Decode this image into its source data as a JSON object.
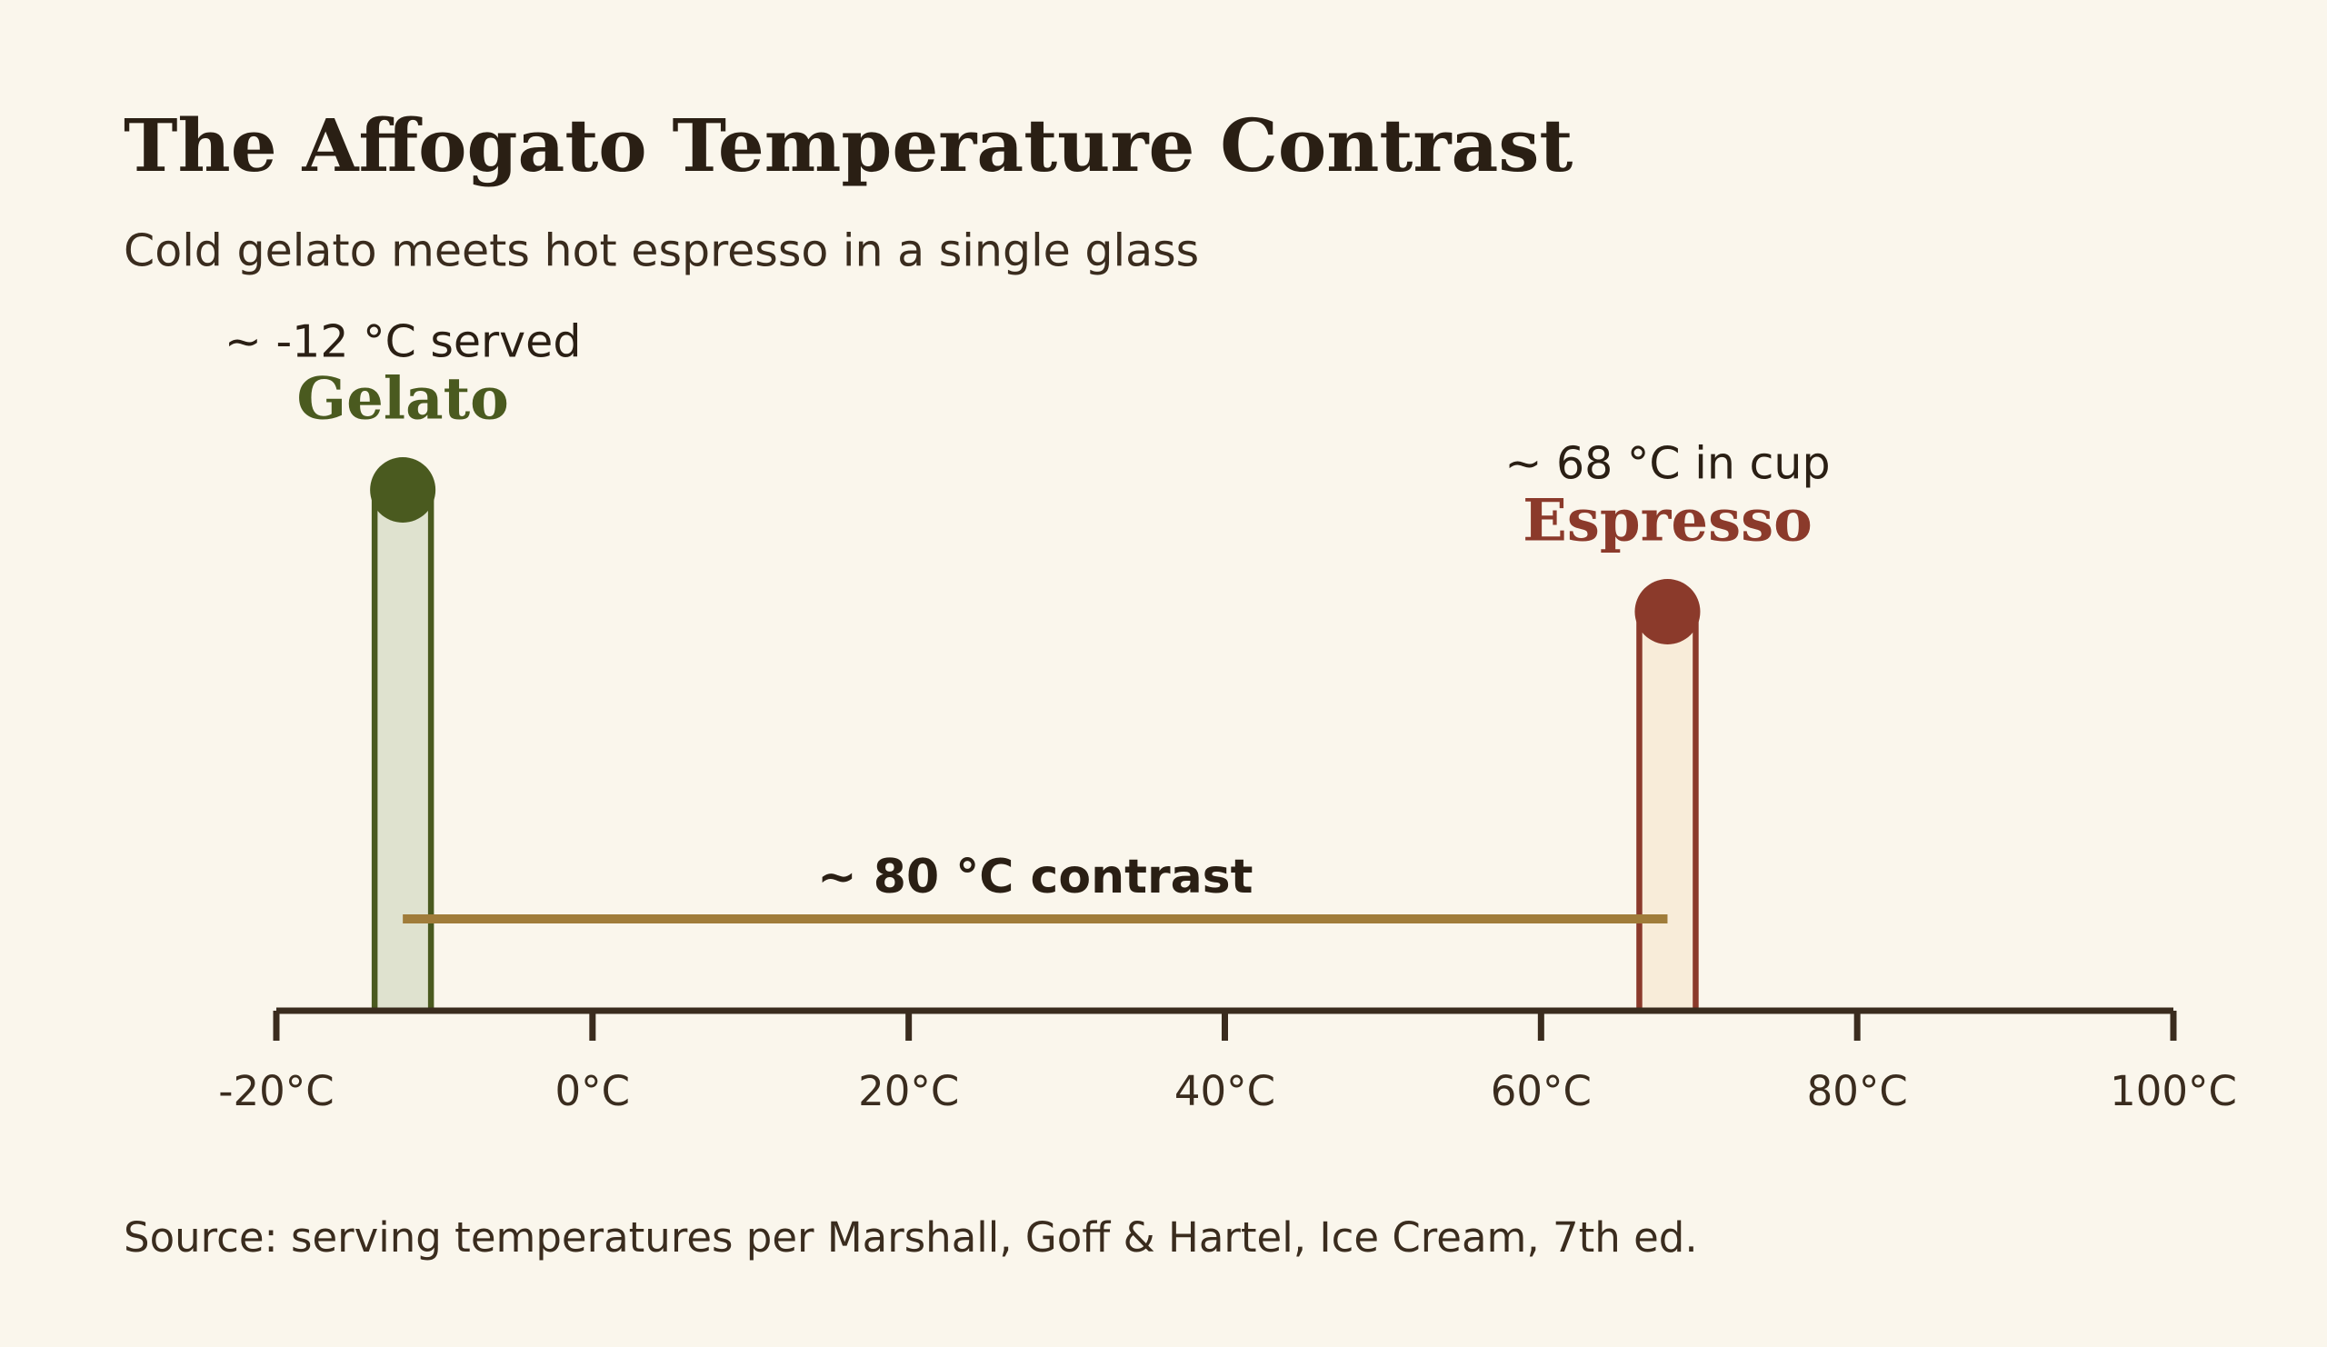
{
  "chart_data": {
    "type": "thermometer",
    "title": "The Affogato Temperature Contrast",
    "subtitle": "Cold gelato meets hot espresso in a single glass",
    "categories": [
      "Gelato",
      "Espresso"
    ],
    "values": [
      -12,
      68
    ],
    "colors": [
      "#4a5a1f",
      "#8b3a2b"
    ],
    "fills": [
      "#dfe2cf",
      "#f8ecd9"
    ],
    "value_annotations": [
      "~ -12 °C served",
      "~ 68 °C in cup"
    ],
    "contrast_label": "~ 80 °C contrast",
    "contrast_color": "#a07c3a",
    "xlim": [
      -20,
      100
    ],
    "xticks": [
      {
        "value": -20,
        "label": "-20°C"
      },
      {
        "value": 0,
        "label": "0°C"
      },
      {
        "value": 20,
        "label": "20°C"
      },
      {
        "value": 40,
        "label": "40°C"
      },
      {
        "value": 60,
        "label": "60°C"
      },
      {
        "value": 80,
        "label": "80°C"
      },
      {
        "value": 100,
        "label": "100°C"
      }
    ],
    "source": "Source: serving temperatures per Marshall, Goff & Hartel, Ice Cream, 7th ed."
  }
}
